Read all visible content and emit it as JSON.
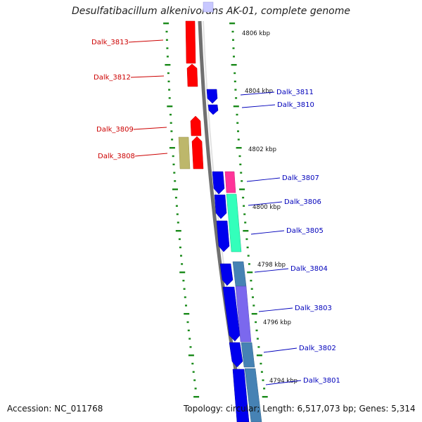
{
  "title": "Desulfatibacillum alkenivorans AK-01, complete genome",
  "footer": {
    "accession": "Accession: NC_011768",
    "summary": "Topology: circular; Length: 6,517,073 bp; Genes: 5,314"
  },
  "colors": {
    "backbone": "#8c8c8c",
    "tick": "#1a8a1a",
    "left_label": "#cc0000",
    "right_label": "#0000bb",
    "forward_gene": "#ff0000",
    "reverse_gene": "#0000ee",
    "olive": "#bdb76b",
    "magenta": "#ff3399",
    "aqua": "#33ffbb",
    "steel": "#4682b4",
    "purple": "#7b68ee",
    "lavender": "#c8c8ff"
  },
  "kbp_labels": [
    "4806 kbp",
    "4804 kbp",
    "4802 kbp",
    "4800 kbp",
    "4798 kbp",
    "4796 kbp",
    "4794 kbp"
  ],
  "left_genes": [
    "Dalk_3813",
    "Dalk_3812",
    "Dalk_3809",
    "Dalk_3808"
  ],
  "right_genes": [
    "Dalk_3811",
    "Dalk_3810",
    "Dalk_3807",
    "Dalk_3806",
    "Dalk_3805",
    "Dalk_3804",
    "Dalk_3803",
    "Dalk_3802",
    "Dalk_3801"
  ]
}
